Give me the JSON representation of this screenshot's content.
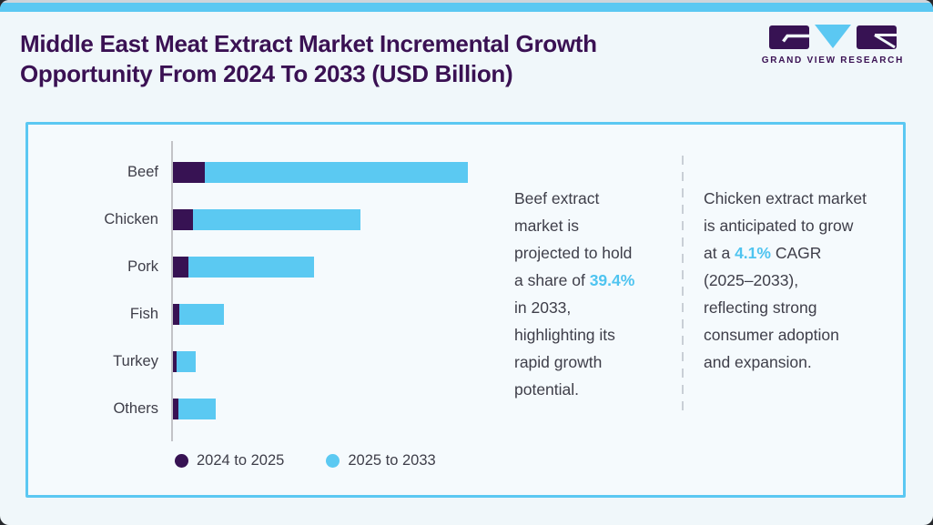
{
  "header": {
    "title": "Middle East Meat Extract Market Incremental Growth Opportunity From 2024 To 2033 (USD Billion)",
    "brand": "GRAND VIEW RESEARCH"
  },
  "chart_data": {
    "type": "bar",
    "orientation": "horizontal",
    "stacked": true,
    "title": "Middle East Meat Extract Market Incremental Growth Opportunity From 2024 To 2033 (USD Billion)",
    "unit": "USD Billion",
    "categories": [
      "Beef",
      "Chicken",
      "Pork",
      "Fish",
      "Turkey",
      "Others"
    ],
    "series": [
      {
        "name": "2024 to 2025",
        "color": "#371253",
        "values": [
          10.8,
          6.8,
          5.3,
          2.2,
          1.2,
          1.9
        ]
      },
      {
        "name": "2025 to 2033",
        "color": "#5BC9F2",
        "values": [
          89.2,
          56.7,
          42.4,
          15.2,
          6.5,
          12.7
        ]
      }
    ],
    "xlim": [
      0,
      100
    ],
    "value_axis_labeled": false,
    "values_note": "Relative magnitudes estimated from bar lengths; numeric axis is not shown in the figure",
    "legend_position": "bottom",
    "grid": false
  },
  "insights": [
    {
      "lines": [
        "Beef extract",
        "market is",
        "projected to hold",
        "a share of **39.4%**",
        "in 2033,",
        "highlighting its",
        "rapid growth",
        "potential."
      ]
    },
    {
      "lines": [
        "Chicken extract market",
        "is anticipated to grow",
        "at a **4.1%** CAGR",
        "(2025–2033),",
        "reflecting strong",
        "consumer adoption",
        "and expansion."
      ]
    }
  ],
  "colors": {
    "accent": "#5BC8F2",
    "dark-purple": "#371253",
    "bar-blue": "#5BC9F2",
    "title": "#3A1153",
    "text": "#3E3E49",
    "highlight": "#4FC4F0",
    "page-bg": "#F0F7FA",
    "panel-bg": "#F5FAFD",
    "axis": "#C2C3C7",
    "divider": "#C9CFD6",
    "top-strip": "#CFD5DB"
  }
}
